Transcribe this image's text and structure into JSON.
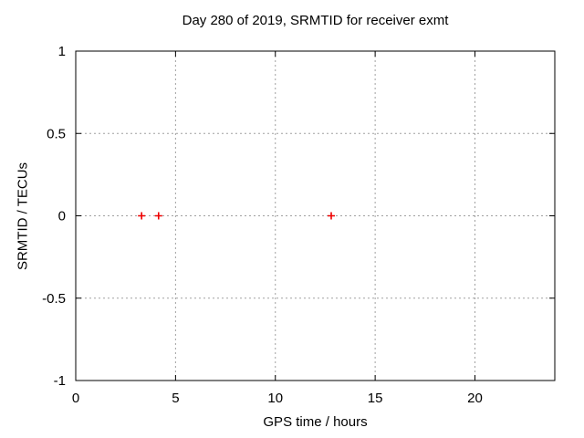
{
  "figure": {
    "background": "#ffffff",
    "text_color": "#000000",
    "axis_color": "#000000"
  },
  "chart_data": {
    "type": "scatter",
    "title": "Day 280 of 2019, SRMTID for receiver exmt",
    "xlabel": "GPS time / hours",
    "ylabel": "SRMTID / TECUs",
    "xlim": [
      0,
      24
    ],
    "ylim": [
      -1,
      1
    ],
    "xticks": {
      "values": [
        0,
        5,
        10,
        15,
        20
      ],
      "labels": [
        "0",
        "5",
        "10",
        "15",
        "20"
      ]
    },
    "yticks": {
      "values": [
        -1,
        -0.5,
        0,
        0.5,
        1
      ],
      "labels": [
        "-1",
        "-0.5",
        "0",
        "0.5",
        "1"
      ]
    },
    "grid": {
      "visible": true,
      "style": "dashed",
      "color": "#a0a0a0"
    },
    "legend": {
      "position": "none"
    },
    "series": [
      {
        "name": "SRMTID",
        "marker": "plus",
        "color": "#ee0000",
        "points": [
          {
            "x": 3.3,
            "y": 0
          },
          {
            "x": 4.15,
            "y": 0
          },
          {
            "x": 12.8,
            "y": 0
          }
        ]
      }
    ]
  }
}
